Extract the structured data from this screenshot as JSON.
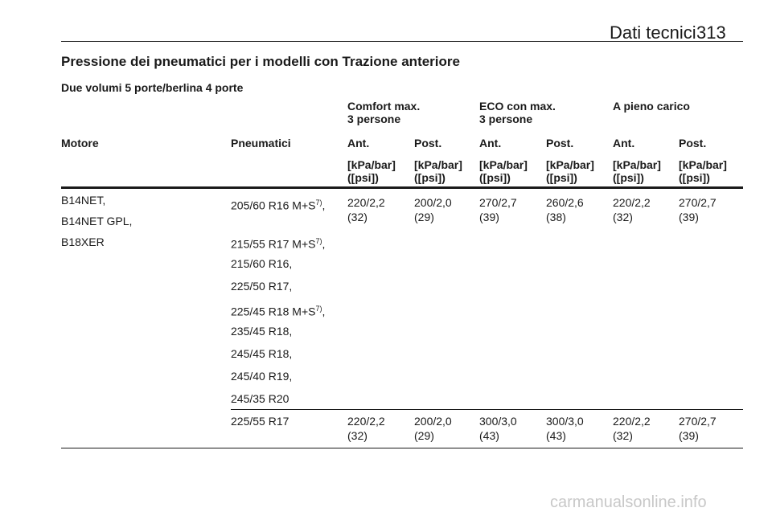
{
  "header": {
    "title": "Dati tecnici",
    "page_number": "313"
  },
  "section_title": "Pressione dei pneumatici per i modelli con Trazione anteriore",
  "subsection_title": "Due volumi 5 porte/berlina 4 porte",
  "table": {
    "group_headers": [
      {
        "line1": "Comfort max.",
        "line2": "3 persone"
      },
      {
        "line1": "ECO con max.",
        "line2": "3 persone"
      },
      {
        "line1": "A pieno carico",
        "line2": ""
      }
    ],
    "column_headers": [
      "Motore",
      "Pneumatici",
      "Ant.",
      "Post.",
      "Ant.",
      "Post.",
      "Ant.",
      "Post."
    ],
    "unit_line1": "[kPa/bar]",
    "unit_line2": "([psi])",
    "engines": [
      "B14NET,",
      "B14NET GPL,",
      "B18XER"
    ],
    "tyres_group1": [
      {
        "text": "205/60 R16 M+S",
        "sup": "7)",
        "tail": ","
      },
      {
        "text": "215/55 R17 M+S",
        "sup": "7)",
        "tail": ","
      },
      {
        "text": "215/60 R16,",
        "sup": "",
        "tail": ""
      },
      {
        "text": "225/50 R17,",
        "sup": "",
        "tail": ""
      },
      {
        "text": "225/45 R18 M+S",
        "sup": "7)",
        "tail": ","
      },
      {
        "text": "235/45 R18,",
        "sup": "",
        "tail": ""
      },
      {
        "text": "245/45 R18,",
        "sup": "",
        "tail": ""
      },
      {
        "text": "245/40 R19,",
        "sup": "",
        "tail": ""
      },
      {
        "text": "245/35 R20",
        "sup": "",
        "tail": ""
      }
    ],
    "values_group1": [
      {
        "bar": "220/2,2",
        "psi": "(32)"
      },
      {
        "bar": "200/2,0",
        "psi": "(29)"
      },
      {
        "bar": "270/2,7",
        "psi": "(39)"
      },
      {
        "bar": "260/2,6",
        "psi": "(38)"
      },
      {
        "bar": "220/2,2",
        "psi": "(32)"
      },
      {
        "bar": "270/2,7",
        "psi": "(39)"
      }
    ],
    "tyres_group2": "225/55 R17",
    "values_group2": [
      {
        "bar": "220/2,2",
        "psi": "(32)"
      },
      {
        "bar": "200/2,0",
        "psi": "(29)"
      },
      {
        "bar": "300/3,0",
        "psi": "(43)"
      },
      {
        "bar": "300/3,0",
        "psi": "(43)"
      },
      {
        "bar": "220/2,2",
        "psi": "(32)"
      },
      {
        "bar": "270/2,7",
        "psi": "(39)"
      }
    ]
  },
  "watermark": "carmanualsonline.info"
}
